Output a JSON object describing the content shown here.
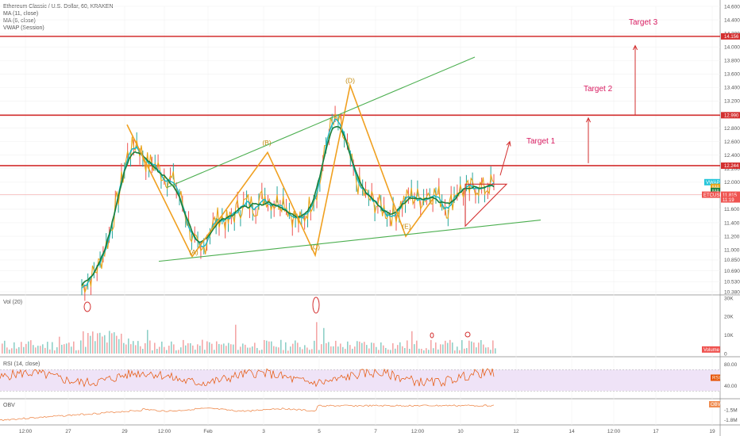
{
  "header": {
    "symbol_line": "Ethereum Classic / U.S. Dollar, 60, KRAKEN",
    "indicators": [
      "MA (11, close)",
      "MA (6, close)",
      "VWAP (Session)"
    ]
  },
  "colors": {
    "price": "#e8a418",
    "ma11": "#1a7f3c",
    "ma6": "#17b8c8",
    "vwap": "#e8a418",
    "resistance": "#d32f2f",
    "wave": "#f0a020",
    "trendline": "#4caf50",
    "rsi": "#e65100",
    "obv": "#ef8c50",
    "vol_up": "#8fd0c8",
    "vol_down": "#f4a7a7",
    "target": "#d81b60"
  },
  "chart_data": {
    "type": "line",
    "price_axis": {
      "ticks": [
        "14.600",
        "14.400",
        "14.200",
        "14.000",
        "13.800",
        "13.600",
        "13.400",
        "13.200",
        "13.000",
        "12.800",
        "12.600",
        "12.400",
        "12.200",
        "12.000",
        "11.800",
        "11.600",
        "11.400",
        "11.200",
        "11.000",
        "10.850",
        "10.690",
        "10.530",
        "10.380"
      ],
      "ylim": [
        10.38,
        14.6
      ]
    },
    "x_ticks": [
      "12:00",
      "27",
      "29",
      "12:00",
      "Feb",
      "3",
      "5",
      "7",
      "12:00",
      "10",
      "12",
      "14",
      "12:00",
      "17",
      "19"
    ],
    "levels": [
      {
        "label": "14.156",
        "value": 14.156
      },
      {
        "label": "12.990",
        "value": 12.99
      },
      {
        "label": "12.244",
        "value": 12.244
      }
    ],
    "price_tags": [
      {
        "label": "VWAP",
        "value": 12.0
      },
      {
        "label": "MA",
        "value": 11.93
      },
      {
        "label": "MA",
        "value": 11.87
      },
      {
        "label": "ETCUSD",
        "value": 11.815
      },
      {
        "label": "11.815",
        "value": 11.815
      },
      {
        "label": "11:19",
        "value": 11.745
      }
    ],
    "wave_labels": [
      "(A)",
      "(B)",
      "(C)",
      "(D)",
      "(E)"
    ],
    "targets": [
      "Target 1",
      "Target 2",
      "Target 3"
    ],
    "price_series": [
      10.45,
      10.6,
      10.8,
      11.2,
      11.8,
      12.4,
      12.6,
      12.3,
      12.25,
      12.1,
      12.0,
      11.7,
      11.2,
      10.9,
      11.3,
      11.5,
      11.4,
      11.6,
      11.7,
      11.65,
      11.8,
      11.7,
      11.75,
      11.5,
      11.4,
      11.7,
      12.0,
      12.8,
      12.9,
      12.5,
      12.0,
      11.8,
      11.7,
      11.6,
      11.5,
      11.7,
      11.8,
      11.75,
      11.85,
      11.8,
      11.6,
      11.9,
      11.85,
      11.95,
      11.9,
      12.0
    ],
    "volume": {
      "label": "Vol (20)",
      "ticks": [
        "30K",
        "20K",
        "10K",
        "0"
      ],
      "badge": "Volume",
      "ylim": [
        0,
        30000
      ]
    },
    "rsi": {
      "label": "RSI (14, close)",
      "ticks": [
        "80.00",
        "40.00"
      ],
      "badge": "RSI",
      "ylim": [
        20,
        90
      ]
    },
    "obv": {
      "label": "OBV",
      "ticks": [
        "-1.5M",
        "-1.8M"
      ],
      "badge": "OBV"
    }
  }
}
